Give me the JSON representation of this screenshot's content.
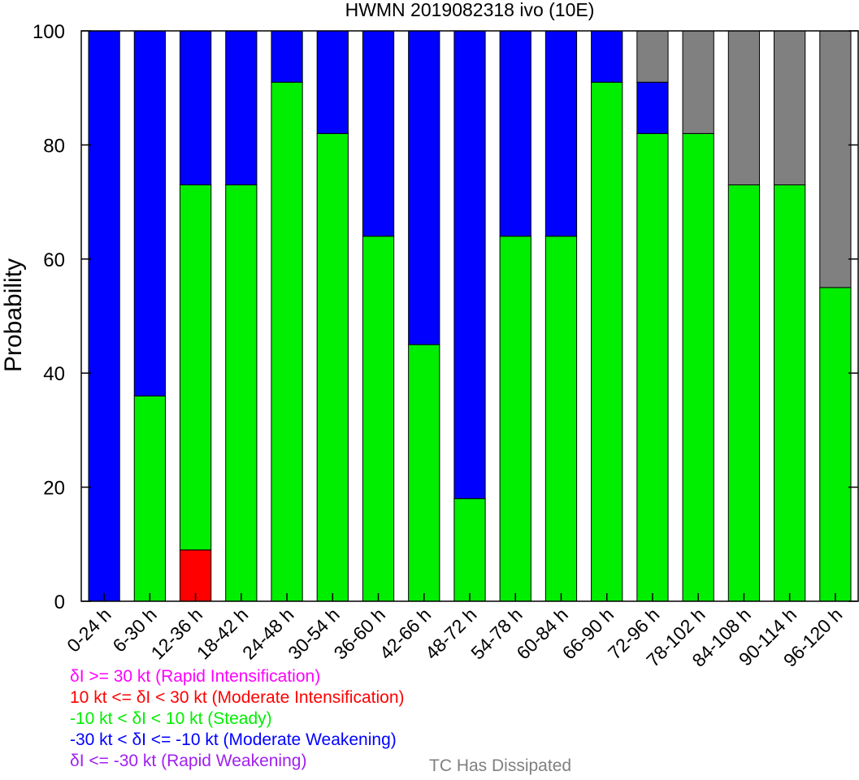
{
  "chart_data": {
    "type": "bar",
    "stacked": true,
    "title": "HWMN 2019082318 ivo (10E)",
    "xlabel": "",
    "ylabel": "Probability",
    "ylim": [
      0,
      100
    ],
    "yticks": [
      "0",
      "20",
      "40",
      "60",
      "80",
      "100"
    ],
    "grid": false,
    "categories": [
      "0-24 h",
      "6-30 h",
      "12-36 h",
      "18-42 h",
      "24-48 h",
      "30-54 h",
      "36-60 h",
      "42-66 h",
      "48-72 h",
      "54-78 h",
      "60-84 h",
      "66-90 h",
      "72-96 h",
      "78-102 h",
      "84-108 h",
      "90-114 h",
      "96-120 h"
    ],
    "series": [
      {
        "name": "δI <= -30 kt (Rapid Weakening)",
        "color": "#a020f0",
        "values": [
          0,
          0,
          0,
          0,
          0,
          0,
          0,
          0,
          0,
          0,
          0,
          0,
          0,
          0,
          0,
          0,
          0
        ]
      },
      {
        "name": "10 kt <= δI < 30 kt (Moderate Intensification)",
        "color": "#ff0000",
        "values": [
          0,
          0,
          9,
          0,
          0,
          0,
          0,
          0,
          0,
          0,
          0,
          0,
          0,
          0,
          0,
          0,
          0
        ]
      },
      {
        "name": "-10 kt < δI < 10 kt (Steady)",
        "color": "#00ee00",
        "values": [
          0,
          36,
          64,
          73,
          91,
          82,
          64,
          45,
          18,
          64,
          64,
          91,
          82,
          82,
          73,
          73,
          55
        ]
      },
      {
        "name": "-30 kt < δI <= -10 kt (Moderate Weakening)",
        "color": "#0000ff",
        "values": [
          100,
          64,
          27,
          27,
          9,
          18,
          36,
          55,
          82,
          36,
          36,
          9,
          9,
          0,
          0,
          0,
          0
        ]
      },
      {
        "name": "δI >= 30 kt (Rapid Intensification)",
        "color": "#ff00ff",
        "values": [
          0,
          0,
          0,
          0,
          0,
          0,
          0,
          0,
          0,
          0,
          0,
          0,
          0,
          0,
          0,
          0,
          0
        ]
      },
      {
        "name": "TC Has Dissipated",
        "color": "#808080",
        "values": [
          0,
          0,
          0,
          0,
          0,
          0,
          0,
          0,
          0,
          0,
          0,
          0,
          9,
          18,
          27,
          27,
          45
        ]
      }
    ]
  },
  "legend": {
    "ri": "δI >= 30 kt (Rapid Intensification)",
    "mi": "10 kt <= δI < 30 kt (Moderate Intensification)",
    "steady": "-10 kt < δI < 10 kt (Steady)",
    "mw": "-30 kt < δI <= -10 kt (Moderate Weakening)",
    "rw": "δI <= -30 kt (Rapid Weakening)",
    "dissipated": "TC Has Dissipated",
    "colors": {
      "ri": "#ff00ff",
      "mi": "#ff0000",
      "steady": "#00ee00",
      "mw": "#0000ff",
      "rw": "#a020f0",
      "dissipated": "#808080"
    }
  }
}
